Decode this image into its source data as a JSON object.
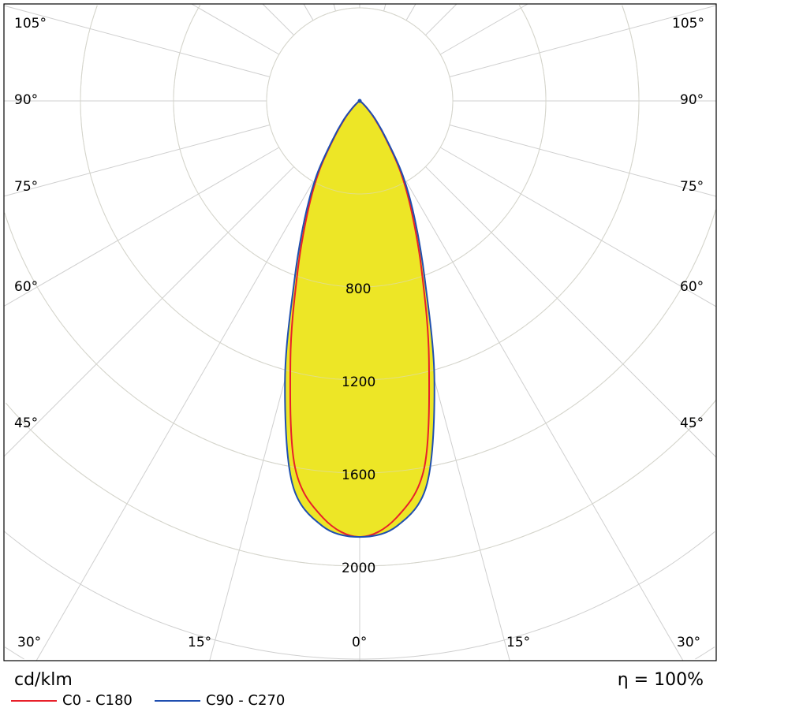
{
  "chart_data": {
    "type": "polar",
    "unit_label": "cd/klm",
    "efficiency_label": "η = 100%",
    "radial_ticks": [
      400,
      800,
      1200,
      1600,
      2000,
      2400,
      2800,
      3200,
      3600
    ],
    "radial_tick_labels": [
      "800",
      "1200",
      "1600",
      "2000"
    ],
    "angle_labels_left": [
      "105°",
      "90°",
      "75°",
      "60°",
      "45°"
    ],
    "angle_labels_right": [
      "105°",
      "90°",
      "75°",
      "60°",
      "45°"
    ],
    "angle_labels_bottom": [
      "30°",
      "15°",
      "0°",
      "15°",
      "30°"
    ],
    "grid": true,
    "legend_position": "bottom-left",
    "angles": [
      0,
      5,
      10,
      15,
      20,
      25,
      30,
      35,
      40,
      45,
      50,
      60,
      90
    ],
    "series": [
      {
        "name": "C0 - C180",
        "color": "#e8202a",
        "values": [
          1875,
          1800,
          1600,
          1150,
          780,
          530,
          350,
          190,
          100,
          45,
          18,
          5,
          0
        ]
      },
      {
        "name": "C90 - C270",
        "color": "#1f4fb0",
        "values": [
          1875,
          1835,
          1670,
          1240,
          820,
          560,
          370,
          200,
          110,
          50,
          20,
          5,
          0
        ]
      }
    ],
    "fill_color": "#ede626"
  }
}
